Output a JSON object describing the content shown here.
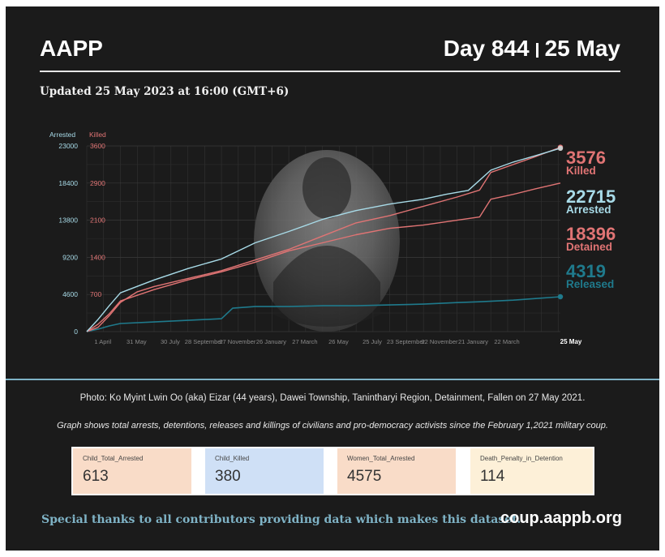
{
  "header": {
    "org": "AAPP",
    "day": "Day 844",
    "date": "25 May",
    "updated": "Updated 25 May 2023 at 16:00 (GMT+6)"
  },
  "photo_caption": "Photo: Ko Myint Lwin Oo (aka) Eizar (44 years), Dawei Township, Tanintharyi Region, Detainment, Fallen on 27 May 2021.",
  "graph_note": "Graph shows total arrests, detentions, releases and killings of civilians and pro-democracy activists since the February 1,2021 military coup.",
  "stats": [
    {
      "label": "Child_Total_Arrested",
      "value": "613",
      "color": "#f9dcc8"
    },
    {
      "label": "Child_Killed",
      "value": "380",
      "color": "#cfe0f6"
    },
    {
      "label": "Women_Total_Arrested",
      "value": "4575",
      "color": "#f9dcc8"
    },
    {
      "label": "Death_Penalty_in_Detention",
      "value": "114",
      "color": "#fdf0d8"
    }
  ],
  "footer": {
    "thanks": "Special thanks to all contributors providing data which makes this dataset.",
    "site": "coup.aappb.org"
  },
  "colors": {
    "arrested": "#a8dbe8",
    "killed": "#e07474",
    "detained": "#e07474",
    "released": "#1f7a8c",
    "background": "#1b1b1b"
  },
  "photo_description": "grayscale portrait in oval frame",
  "chart_data": {
    "type": "line",
    "left_axis_label": "Arrested",
    "right_axis_label": "Killed",
    "left_axis_ticks": [
      0,
      4600,
      9200,
      13800,
      18400,
      23000
    ],
    "right_axis_ticks": [
      700,
      1400,
      2100,
      2900,
      3600
    ],
    "left_axis_range": [
      0,
      23000
    ],
    "x_tick_labels": [
      "1 April",
      "31 May",
      "30 July",
      "28 September",
      "27 November",
      "26 January",
      "27 March",
      "26 May",
      "25 July",
      "23 September",
      "22 November",
      "21 January",
      "22 March",
      "25 May"
    ],
    "x_range_days": [
      0,
      844
    ],
    "x_tick_days": [
      59,
      119,
      179,
      239,
      299,
      359,
      419,
      479,
      539,
      599,
      659,
      719,
      779,
      844
    ],
    "grid": true,
    "series": [
      {
        "name": "Killed",
        "label": "Killed",
        "final": 3576,
        "axis": "right",
        "x": [
          0,
          20,
          40,
          60,
          90,
          120,
          180,
          240,
          300,
          360,
          420,
          480,
          540,
          600,
          660,
          700,
          720,
          760,
          800,
          844
        ],
        "values": [
          0,
          80,
          300,
          550,
          750,
          850,
          1000,
          1150,
          1350,
          1550,
          1800,
          2050,
          2200,
          2400,
          2600,
          2750,
          3100,
          3250,
          3400,
          3576
        ]
      },
      {
        "name": "Arrested",
        "label": "Arrested",
        "final": 22715,
        "axis": "left",
        "x": [
          0,
          20,
          40,
          60,
          90,
          120,
          180,
          240,
          300,
          360,
          420,
          480,
          540,
          600,
          640,
          680,
          720,
          760,
          800,
          844
        ],
        "values": [
          0,
          1500,
          3200,
          4800,
          5600,
          6400,
          7800,
          9000,
          11000,
          12400,
          13900,
          15000,
          15800,
          16400,
          17000,
          17500,
          20000,
          21000,
          21800,
          22715
        ]
      },
      {
        "name": "Detained",
        "label": "Detained",
        "final": 18396,
        "axis": "left",
        "x": [
          0,
          20,
          40,
          60,
          90,
          120,
          180,
          240,
          300,
          360,
          420,
          480,
          540,
          600,
          660,
          700,
          720,
          760,
          800,
          844
        ],
        "values": [
          0,
          900,
          2200,
          3800,
          4500,
          5200,
          6400,
          7400,
          8600,
          10000,
          11000,
          12000,
          12800,
          13200,
          13800,
          14200,
          16400,
          17000,
          17700,
          18396
        ]
      },
      {
        "name": "Released",
        "label": "Released",
        "final": 4319,
        "axis": "left",
        "x": [
          0,
          20,
          40,
          60,
          120,
          180,
          240,
          260,
          300,
          360,
          420,
          480,
          540,
          600,
          660,
          700,
          760,
          800,
          844
        ],
        "values": [
          0,
          300,
          700,
          1000,
          1200,
          1400,
          1600,
          2900,
          3100,
          3100,
          3200,
          3200,
          3300,
          3400,
          3600,
          3700,
          3900,
          4100,
          4319
        ]
      }
    ]
  }
}
